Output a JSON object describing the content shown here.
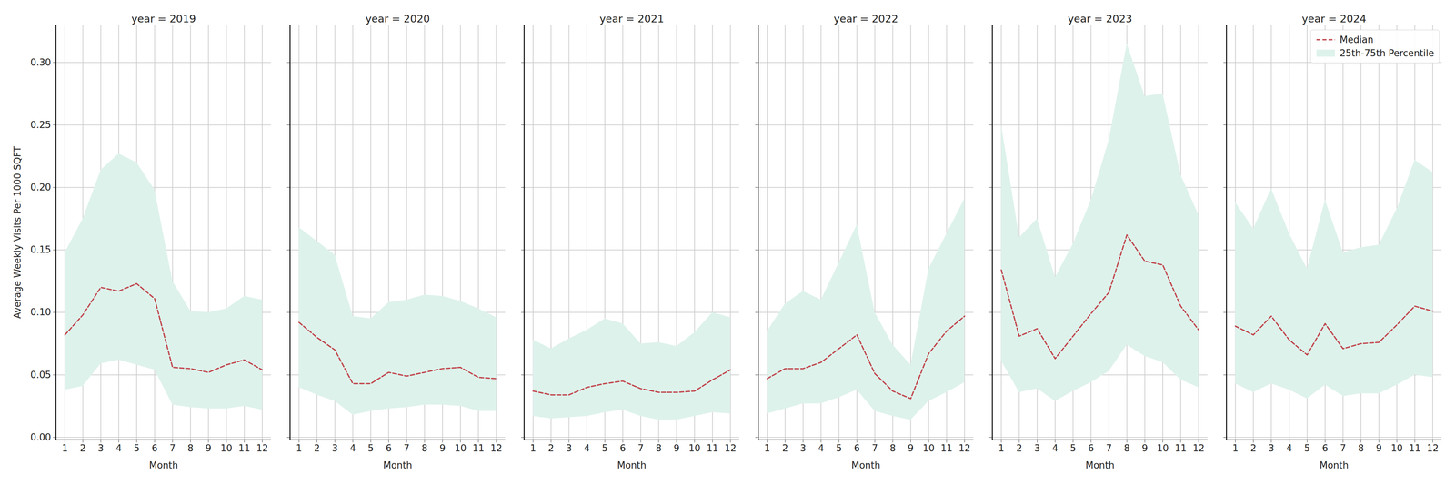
{
  "chart_data": [
    {
      "type": "line",
      "title": "year = 2019",
      "x_label": "Month",
      "y_label": "Average Weekly Visits Per 1000 SQFT",
      "x": [
        1,
        2,
        3,
        4,
        5,
        6,
        7,
        8,
        9,
        10,
        11,
        12
      ],
      "series": [
        {
          "name": "Median",
          "type": "line",
          "color": "#c0444a",
          "line_style": "dashed",
          "values": [
            0.082,
            0.098,
            0.12,
            0.117,
            0.123,
            0.111,
            0.056,
            0.055,
            0.052,
            0.058,
            0.062,
            0.054
          ]
        },
        {
          "name": "25th-75th Percentile",
          "type": "band",
          "color": "#def2ec",
          "lower": [
            0.038,
            0.041,
            0.059,
            0.062,
            0.058,
            0.054,
            0.026,
            0.024,
            0.023,
            0.023,
            0.025,
            0.022
          ],
          "upper": [
            0.148,
            0.175,
            0.214,
            0.227,
            0.22,
            0.198,
            0.125,
            0.101,
            0.1,
            0.103,
            0.113,
            0.11
          ]
        }
      ],
      "xlim": [
        0.5,
        12.5
      ],
      "xticks": [
        1,
        2,
        3,
        4,
        5,
        6,
        7,
        8,
        9,
        10,
        11,
        12
      ],
      "ylim": [
        -0.002,
        0.33
      ],
      "yticks": [
        {
          "value": 0,
          "label": "0.00"
        },
        {
          "value": 0.05,
          "label": "0.05"
        },
        {
          "value": 0.1,
          "label": "0.10"
        },
        {
          "value": 0.15,
          "label": "0.15"
        },
        {
          "value": 0.2,
          "label": "0.20"
        },
        {
          "value": 0.25,
          "label": "0.25"
        },
        {
          "value": 0.3,
          "label": "0.30"
        }
      ],
      "grid": true
    },
    {
      "type": "line",
      "title": "year = 2020",
      "x_label": "Month",
      "x": [
        1,
        2,
        3,
        4,
        5,
        6,
        7,
        8,
        9,
        10,
        11,
        12
      ],
      "series": [
        {
          "name": "Median",
          "type": "line",
          "color": "#c0444a",
          "line_style": "dashed",
          "values": [
            0.092,
            0.08,
            0.07,
            0.043,
            0.043,
            0.052,
            0.049,
            0.052,
            0.055,
            0.056,
            0.048,
            0.047
          ]
        },
        {
          "name": "25th-75th Percentile",
          "type": "band",
          "color": "#def2ec",
          "lower": [
            0.04,
            0.034,
            0.029,
            0.018,
            0.021,
            0.023,
            0.024,
            0.026,
            0.026,
            0.025,
            0.021,
            0.021
          ],
          "upper": [
            0.168,
            0.157,
            0.146,
            0.097,
            0.095,
            0.108,
            0.11,
            0.114,
            0.113,
            0.109,
            0.103,
            0.096
          ]
        }
      ],
      "xlim": [
        0.5,
        12.5
      ],
      "xticks": [
        1,
        2,
        3,
        4,
        5,
        6,
        7,
        8,
        9,
        10,
        11,
        12
      ],
      "ylim": [
        -0.002,
        0.33
      ],
      "yticks": [
        0,
        0.05,
        0.1,
        0.15,
        0.2,
        0.25,
        0.3
      ],
      "grid": true,
      "tick_labels": "x"
    },
    {
      "type": "line",
      "title": "year = 2021",
      "x_label": "Month",
      "x": [
        1,
        2,
        3,
        4,
        5,
        6,
        7,
        8,
        9,
        10,
        11,
        12
      ],
      "series": [
        {
          "name": "Median",
          "type": "line",
          "color": "#c0444a",
          "line_style": "dashed",
          "values": [
            0.037,
            0.034,
            0.034,
            0.04,
            0.043,
            0.045,
            0.039,
            0.036,
            0.036,
            0.037,
            0.046,
            0.054
          ]
        },
        {
          "name": "25th-75th Percentile",
          "type": "band",
          "color": "#def2ec",
          "lower": [
            0.017,
            0.015,
            0.016,
            0.017,
            0.02,
            0.022,
            0.017,
            0.014,
            0.014,
            0.017,
            0.02,
            0.019
          ],
          "upper": [
            0.078,
            0.071,
            0.079,
            0.086,
            0.095,
            0.091,
            0.075,
            0.076,
            0.073,
            0.084,
            0.1,
            0.096
          ]
        }
      ],
      "xlim": [
        0.5,
        12.5
      ],
      "xticks": [
        1,
        2,
        3,
        4,
        5,
        6,
        7,
        8,
        9,
        10,
        11,
        12
      ],
      "ylim": [
        -0.002,
        0.33
      ],
      "yticks": [
        0,
        0.05,
        0.1,
        0.15,
        0.2,
        0.25,
        0.3
      ],
      "grid": true,
      "tick_labels": "x"
    },
    {
      "type": "line",
      "title": "year = 2022",
      "x_label": "Month",
      "x": [
        1,
        2,
        3,
        4,
        5,
        6,
        7,
        8,
        9,
        10,
        11,
        12
      ],
      "series": [
        {
          "name": "Median",
          "type": "line",
          "color": "#c0444a",
          "line_style": "dashed",
          "values": [
            0.047,
            0.055,
            0.055,
            0.06,
            0.071,
            0.082,
            0.051,
            0.037,
            0.031,
            0.067,
            0.085,
            0.097
          ]
        },
        {
          "name": "25th-75th Percentile",
          "type": "band",
          "color": "#def2ec",
          "lower": [
            0.019,
            0.023,
            0.027,
            0.027,
            0.032,
            0.038,
            0.021,
            0.017,
            0.014,
            0.029,
            0.036,
            0.044
          ],
          "upper": [
            0.085,
            0.107,
            0.117,
            0.11,
            0.14,
            0.17,
            0.1,
            0.074,
            0.058,
            0.135,
            0.163,
            0.191
          ]
        }
      ],
      "xlim": [
        0.5,
        12.5
      ],
      "xticks": [
        1,
        2,
        3,
        4,
        5,
        6,
        7,
        8,
        9,
        10,
        11,
        12
      ],
      "ylim": [
        -0.002,
        0.33
      ],
      "yticks": [
        0,
        0.05,
        0.1,
        0.15,
        0.2,
        0.25,
        0.3
      ],
      "grid": true,
      "tick_labels": "x"
    },
    {
      "type": "line",
      "title": "year = 2023",
      "x_label": "Month",
      "x": [
        1,
        2,
        3,
        4,
        5,
        6,
        7,
        8,
        9,
        10,
        11,
        12
      ],
      "series": [
        {
          "name": "Median",
          "type": "line",
          "color": "#c0444a",
          "line_style": "dashed",
          "values": [
            0.134,
            0.081,
            0.087,
            0.063,
            0.081,
            0.099,
            0.116,
            0.162,
            0.141,
            0.138,
            0.105,
            0.086
          ]
        },
        {
          "name": "25th-75th Percentile",
          "type": "band",
          "color": "#def2ec",
          "lower": [
            0.061,
            0.036,
            0.039,
            0.029,
            0.037,
            0.044,
            0.053,
            0.074,
            0.065,
            0.06,
            0.046,
            0.04
          ],
          "upper": [
            0.25,
            0.16,
            0.175,
            0.128,
            0.155,
            0.19,
            0.238,
            0.315,
            0.273,
            0.275,
            0.21,
            0.178
          ]
        }
      ],
      "xlim": [
        0.5,
        12.5
      ],
      "xticks": [
        1,
        2,
        3,
        4,
        5,
        6,
        7,
        8,
        9,
        10,
        11,
        12
      ],
      "ylim": [
        -0.002,
        0.33
      ],
      "yticks": [
        0,
        0.05,
        0.1,
        0.15,
        0.2,
        0.25,
        0.3
      ],
      "grid": true,
      "tick_labels": "x"
    },
    {
      "type": "line",
      "title": "year = 2024",
      "x_label": "Month",
      "x": [
        1,
        2,
        3,
        4,
        5,
        6,
        7,
        8,
        9,
        10,
        11,
        12
      ],
      "series": [
        {
          "name": "Median",
          "type": "line",
          "color": "#c0444a",
          "line_style": "dashed",
          "values": [
            0.089,
            0.082,
            0.097,
            0.078,
            0.066,
            0.091,
            0.071,
            0.075,
            0.076,
            0.09,
            0.105,
            0.101
          ]
        },
        {
          "name": "25th-75th Percentile",
          "type": "band",
          "color": "#def2ec",
          "lower": [
            0.043,
            0.036,
            0.043,
            0.038,
            0.031,
            0.042,
            0.033,
            0.035,
            0.035,
            0.042,
            0.05,
            0.048
          ],
          "upper": [
            0.188,
            0.167,
            0.199,
            0.163,
            0.135,
            0.19,
            0.148,
            0.152,
            0.154,
            0.183,
            0.222,
            0.212
          ]
        }
      ],
      "xlim": [
        0.5,
        12.5
      ],
      "xticks": [
        1,
        2,
        3,
        4,
        5,
        6,
        7,
        8,
        9,
        10,
        11,
        12
      ],
      "ylim": [
        -0.002,
        0.33
      ],
      "yticks": [
        0,
        0.05,
        0.1,
        0.15,
        0.2,
        0.25,
        0.3
      ],
      "grid": true,
      "tick_labels": "x",
      "legend": "upper right"
    }
  ]
}
